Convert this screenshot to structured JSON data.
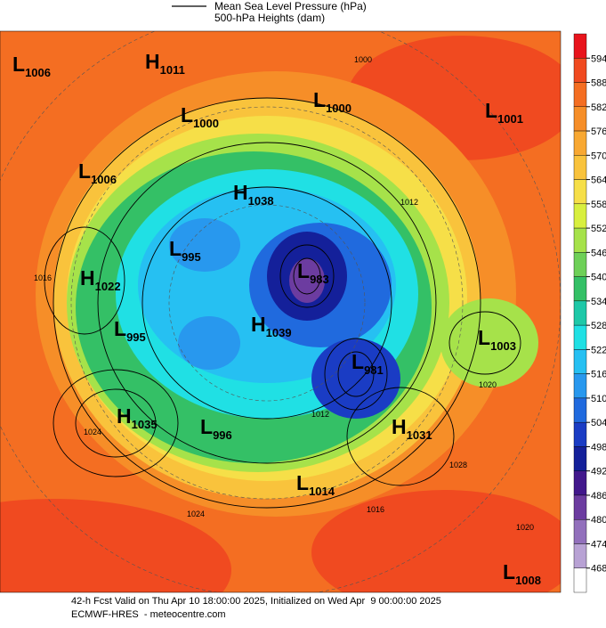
{
  "legend": {
    "line1": "Mean Sea Level Pressure (hPa)",
    "line2": "500-hPa Heights (dam)"
  },
  "colorbar": {
    "ticks": [
      594,
      588,
      582,
      576,
      570,
      564,
      558,
      552,
      546,
      540,
      534,
      528,
      522,
      516,
      510,
      504,
      498,
      492,
      486,
      480,
      474,
      468
    ],
    "colors": [
      "#e8141c",
      "#f04a20",
      "#f46e22",
      "#f68e28",
      "#f8a832",
      "#f9c33c",
      "#f6df48",
      "#d8ef3e",
      "#a6e24a",
      "#6ed058",
      "#34c066",
      "#1ec8a8",
      "#20e0e4",
      "#26c0f2",
      "#2898ee",
      "#206ade",
      "#1a3cc4",
      "#14209a",
      "#42188c",
      "#6c3ca0",
      "#9270bc",
      "#b8a2d4",
      "#ffffff"
    ]
  },
  "centers": [
    {
      "type": "L",
      "value": 1006
    },
    {
      "type": "H",
      "value": 1011
    },
    {
      "type": "L",
      "value": 1000
    },
    {
      "type": "L",
      "value": 1000
    },
    {
      "type": "L",
      "value": 1001
    },
    {
      "type": "L",
      "value": 1006
    },
    {
      "type": "H",
      "value": 1038
    },
    {
      "type": "L",
      "value": 995
    },
    {
      "type": "H",
      "value": 1022
    },
    {
      "type": "L",
      "value": 983
    },
    {
      "type": "L",
      "value": 995
    },
    {
      "type": "H",
      "value": 1039
    },
    {
      "type": "L",
      "value": 981
    },
    {
      "type": "L",
      "value": 1003
    },
    {
      "type": "H",
      "value": 1035
    },
    {
      "type": "L",
      "value": 996
    },
    {
      "type": "H",
      "value": 1031
    },
    {
      "type": "L",
      "value": 1014
    },
    {
      "type": "L",
      "value": 1008
    }
  ],
  "contour_labels": [
    1000,
    1012,
    1016,
    1020,
    1024,
    1028,
    1012,
    1016,
    1024,
    1020
  ],
  "footer": {
    "line1": "42-h Fcst Valid on Thu Apr 10 18:00:00 2025, Initialized on Wed Apr  9 00:00:00 2025",
    "line2": "ECMWF-HRES  - meteocentre.com"
  }
}
